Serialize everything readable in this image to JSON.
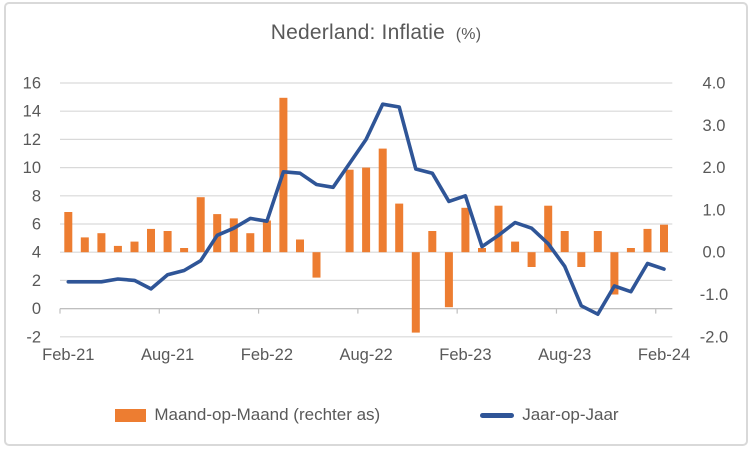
{
  "title": {
    "main": "Nederland: Inflatie",
    "suffix": "(%)"
  },
  "legend": [
    {
      "label": "Maand-op-Maand (rechter as)",
      "swatch": "bar",
      "color": "#ED7D31"
    },
    {
      "label": "Jaar-op-Jaar",
      "swatch": "line",
      "color": "#2F5597"
    }
  ],
  "colors": {
    "bar": "#ED7D31",
    "line": "#2F5597",
    "gridline": "#D9D9D9",
    "axis_line": "#BFBFBF",
    "text": "#595959",
    "border": "#D9D9D9"
  },
  "chart_data": {
    "type": "bar+line combo",
    "title": "Nederland: Inflatie (%)",
    "categories": [
      "Feb-21",
      "Mar-21",
      "Apr-21",
      "May-21",
      "Jun-21",
      "Jul-21",
      "Aug-21",
      "Sep-21",
      "Oct-21",
      "Nov-21",
      "Dec-21",
      "Jan-22",
      "Feb-22",
      "Mar-22",
      "Apr-22",
      "May-22",
      "Jun-22",
      "Jul-22",
      "Aug-22",
      "Sep-22",
      "Oct-22",
      "Nov-22",
      "Dec-22",
      "Jan-23",
      "Feb-23",
      "Mar-23",
      "Apr-23",
      "May-23",
      "Jun-23",
      "Jul-23",
      "Aug-23",
      "Sep-23",
      "Oct-23",
      "Nov-23",
      "Dec-23",
      "Jan-24",
      "Feb-24"
    ],
    "series": [
      {
        "name": "Maand-op-Maand (rechter as)",
        "type": "bar",
        "axis": "right",
        "values": [
          0.95,
          0.35,
          0.45,
          0.15,
          0.25,
          0.55,
          0.5,
          0.1,
          1.3,
          0.9,
          0.8,
          0.45,
          0.75,
          3.65,
          0.3,
          -0.6,
          0.0,
          1.95,
          2.0,
          2.45,
          1.15,
          -1.9,
          0.5,
          -1.3,
          1.05,
          0.1,
          1.1,
          0.25,
          -0.35,
          1.1,
          0.5,
          -0.35,
          0.5,
          -1.0,
          0.1,
          0.55,
          0.65
        ]
      },
      {
        "name": "Jaar-op-Jaar",
        "type": "line",
        "axis": "left",
        "values": [
          1.9,
          1.9,
          1.9,
          2.1,
          2.0,
          1.4,
          2.4,
          2.7,
          3.4,
          5.2,
          5.7,
          6.4,
          6.2,
          9.7,
          9.6,
          8.8,
          8.6,
          10.3,
          12.0,
          14.5,
          14.3,
          9.9,
          9.6,
          7.6,
          8.0,
          4.4,
          5.2,
          6.1,
          5.7,
          4.6,
          3.0,
          0.2,
          -0.4,
          1.6,
          1.2,
          3.2,
          2.8
        ]
      }
    ],
    "left_axis": {
      "min": -2,
      "max": 16,
      "step": 2,
      "ticks": [
        "16",
        "14",
        "12",
        "10",
        "8",
        "6",
        "4",
        "2",
        "0",
        "-2"
      ]
    },
    "right_axis": {
      "min": -2.0,
      "max": 4.0,
      "step": 1.0,
      "ticks": [
        "4.0",
        "3.0",
        "2.0",
        "1.0",
        "0.0",
        "-1.0",
        "-2.0"
      ]
    },
    "x_tick_labels": [
      "Feb-21",
      "Aug-21",
      "Feb-22",
      "Aug-22",
      "Feb-23",
      "Aug-23",
      "Feb-24"
    ],
    "grid": "horizontal",
    "legend_position": "bottom"
  }
}
